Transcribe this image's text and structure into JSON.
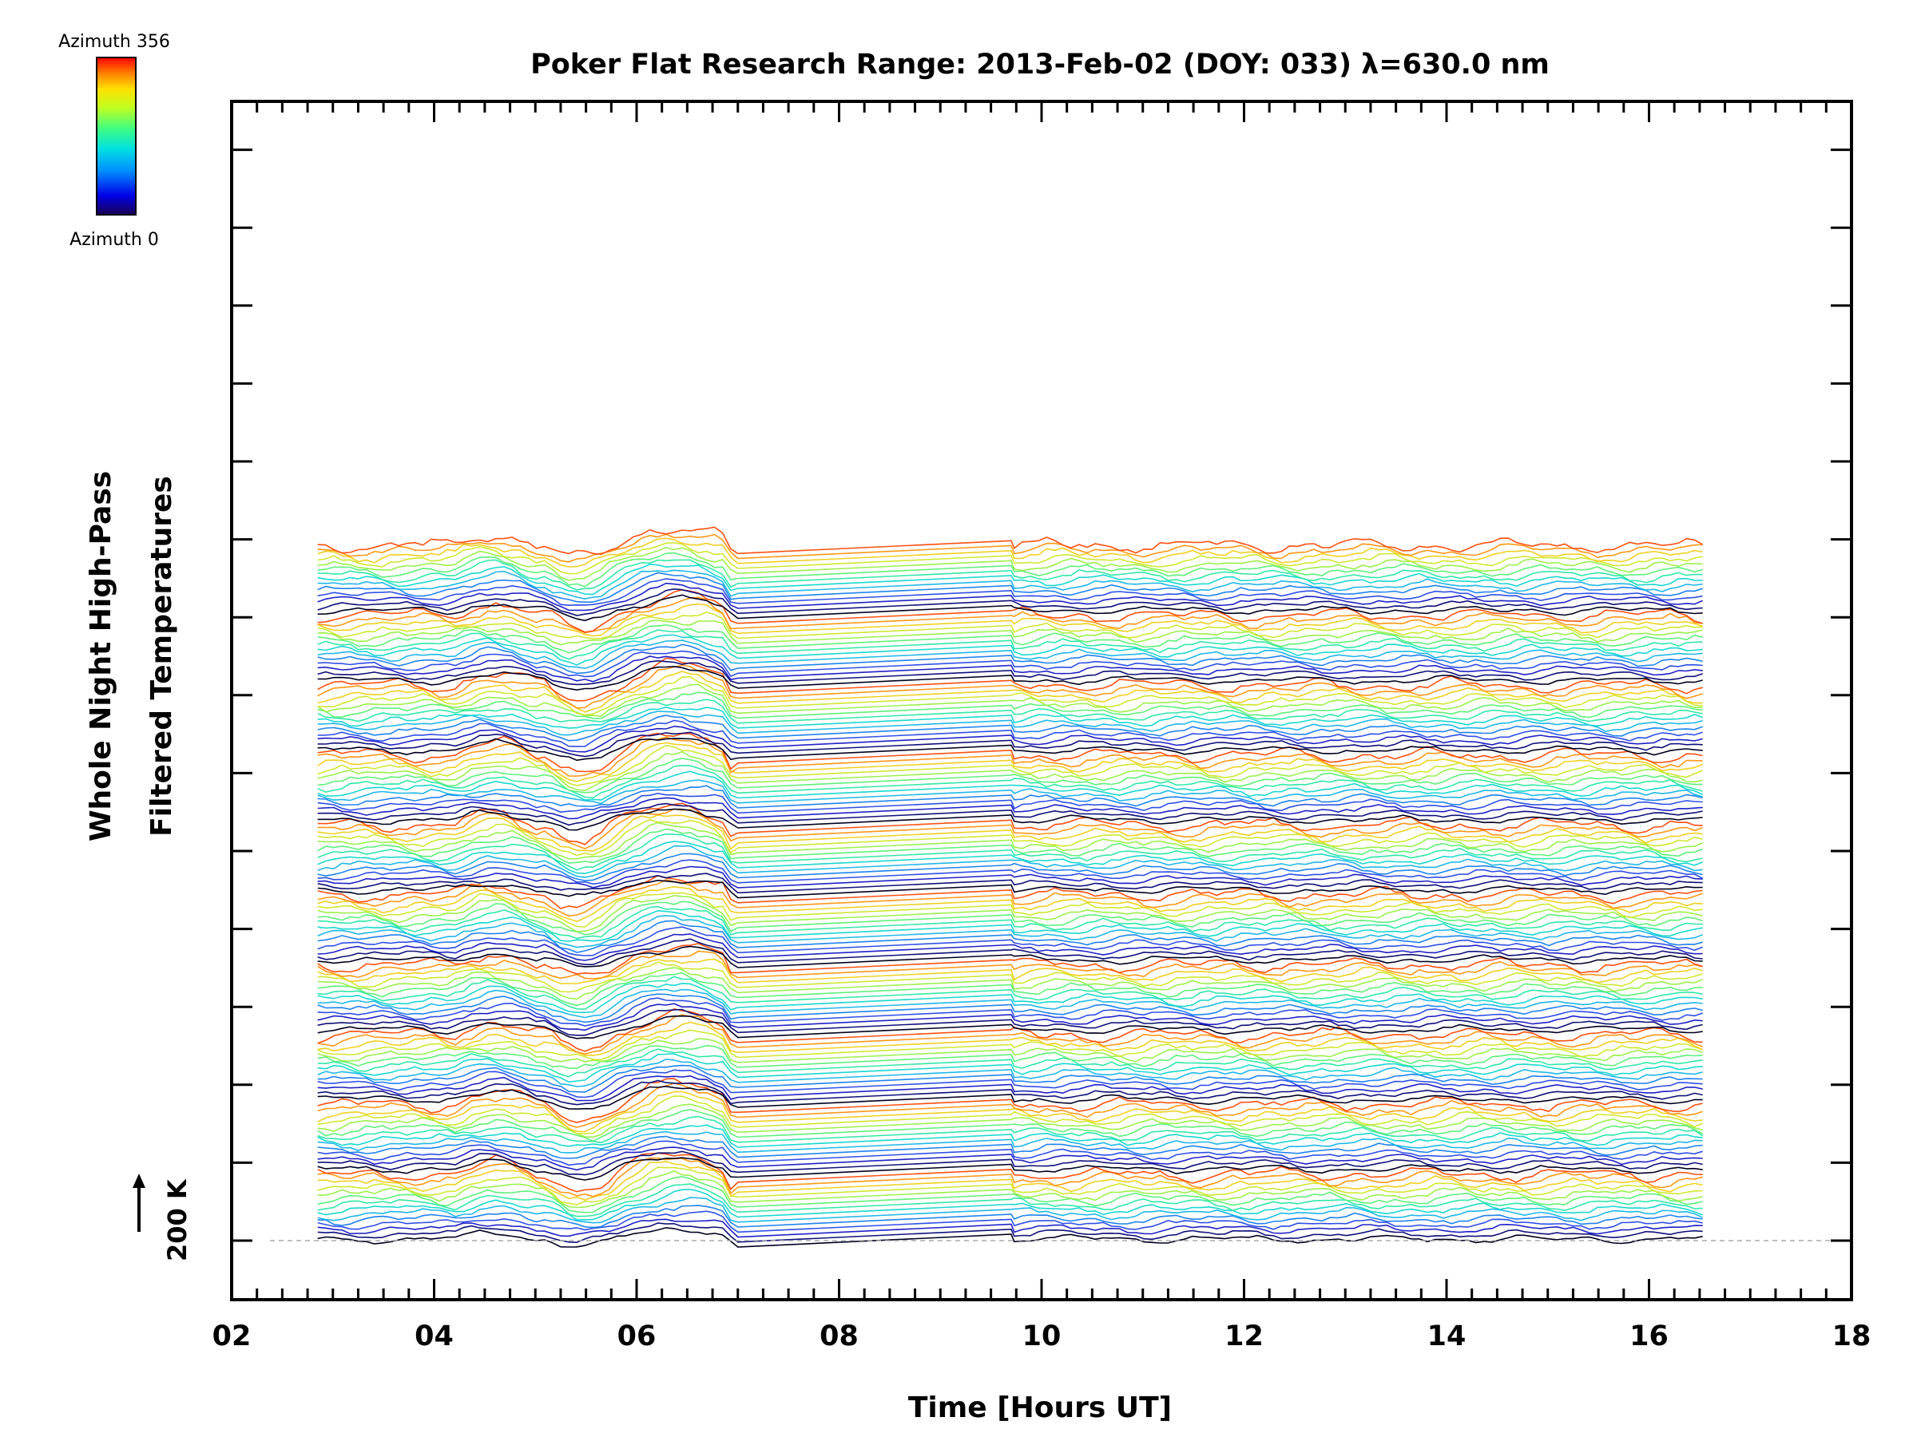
{
  "chart_data": {
    "type": "line",
    "title": "Poker Flat Research Range: 2013-Feb-02 (DOY: 033) λ=630.0 nm",
    "xlabel": "Time [Hours UT]",
    "ylabel_line1": "Whole Night High-Pass",
    "ylabel_line2": "Filtered Temperatures",
    "xlim": [
      2,
      18
    ],
    "x_tick_labels": [
      "02",
      "04",
      "06",
      "08",
      "10",
      "12",
      "14",
      "16",
      "18"
    ],
    "x_tick_values": [
      2,
      4,
      6,
      8,
      10,
      12,
      14,
      16,
      18
    ],
    "x_range_data": [
      2.85,
      16.6
    ],
    "data_gap": [
      7.0,
      9.7
    ],
    "scale_bar": "200 K",
    "colorbar": {
      "top_label": "Azimuth 356",
      "bottom_label": "Azimuth 0",
      "colors": [
        "#ff0000",
        "#ff8000",
        "#ffff00",
        "#80ff00",
        "#00ff80",
        "#00ffff",
        "#0080ff",
        "#0000ff",
        "#200080"
      ]
    },
    "series_count": 140,
    "stack_group_size": 14,
    "grid": false
  }
}
